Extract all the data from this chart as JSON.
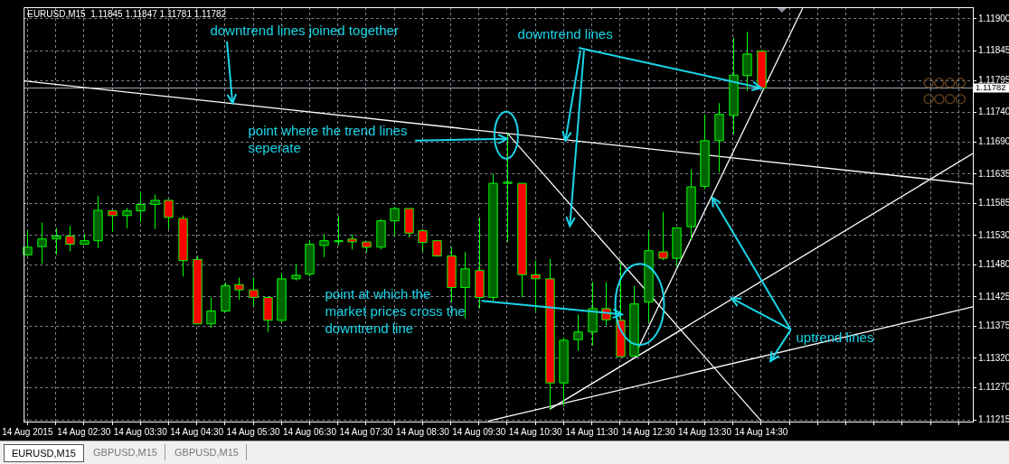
{
  "chart_data": {
    "type": "candlestick",
    "title": "EURUSD,M15  1.11845 1.11847 1.11781 1.11782",
    "x": [
      "2015-08-14T01:30",
      "2015-08-14T01:45",
      "2015-08-14T02:00",
      "2015-08-14T02:15",
      "2015-08-14T02:30",
      "2015-08-14T02:45",
      "2015-08-14T03:00",
      "2015-08-14T03:15",
      "2015-08-14T03:30",
      "2015-08-14T03:45",
      "2015-08-14T04:00",
      "2015-08-14T04:15",
      "2015-08-14T04:30",
      "2015-08-14T04:45",
      "2015-08-14T05:00",
      "2015-08-14T05:15",
      "2015-08-14T05:30",
      "2015-08-14T05:45",
      "2015-08-14T06:00",
      "2015-08-14T06:15",
      "2015-08-14T06:30",
      "2015-08-14T06:45",
      "2015-08-14T07:00",
      "2015-08-14T07:15",
      "2015-08-14T07:30",
      "2015-08-14T07:45",
      "2015-08-14T08:00",
      "2015-08-14T08:15",
      "2015-08-14T08:30",
      "2015-08-14T08:45",
      "2015-08-14T09:00",
      "2015-08-14T09:15",
      "2015-08-14T09:30",
      "2015-08-14T09:45",
      "2015-08-14T10:00",
      "2015-08-14T10:15",
      "2015-08-14T10:30",
      "2015-08-14T10:45",
      "2015-08-14T11:00",
      "2015-08-14T11:15",
      "2015-08-14T11:30",
      "2015-08-14T11:45",
      "2015-08-14T12:00",
      "2015-08-14T12:15",
      "2015-08-14T12:30",
      "2015-08-14T12:45",
      "2015-08-14T13:00",
      "2015-08-14T13:15",
      "2015-08-14T13:30",
      "2015-08-14T13:45",
      "2015-08-14T14:00",
      "2015-08-14T14:15",
      "2015-08-14T14:30"
    ],
    "ohlc": [
      [
        1.11497,
        1.11538,
        1.11495,
        1.1151
      ],
      [
        1.11511,
        1.11552,
        1.11482,
        1.11524
      ],
      [
        1.11524,
        1.11543,
        1.11497,
        1.11529
      ],
      [
        1.11529,
        1.11546,
        1.11503,
        1.11515
      ],
      [
        1.11515,
        1.11533,
        1.11515,
        1.11521
      ],
      [
        1.11521,
        1.11598,
        1.11508,
        1.11573
      ],
      [
        1.11572,
        1.11572,
        1.11536,
        1.11564
      ],
      [
        1.11564,
        1.11577,
        1.11542,
        1.11572
      ],
      [
        1.11572,
        1.11604,
        1.11553,
        1.11583
      ],
      [
        1.11583,
        1.116,
        1.11541,
        1.1159
      ],
      [
        1.1159,
        1.1159,
        1.11541,
        1.11561
      ],
      [
        1.11559,
        1.11564,
        1.1146,
        1.11487
      ],
      [
        1.11489,
        1.11496,
        1.11379,
        1.11379
      ],
      [
        1.11379,
        1.11424,
        1.11372,
        1.11401
      ],
      [
        1.11401,
        1.1145,
        1.11399,
        1.11444
      ],
      [
        1.11446,
        1.11458,
        1.1142,
        1.11437
      ],
      [
        1.11437,
        1.11458,
        1.11409,
        1.11424
      ],
      [
        1.11424,
        1.11424,
        1.11365,
        1.11385
      ],
      [
        1.11385,
        1.11466,
        1.11381,
        1.11456
      ],
      [
        1.11456,
        1.11481,
        1.11453,
        1.11462
      ],
      [
        1.11464,
        1.11522,
        1.1146,
        1.11515
      ],
      [
        1.11513,
        1.11532,
        1.11493,
        1.11521
      ],
      [
        1.11521,
        1.11564,
        1.11513,
        1.11521
      ],
      [
        1.11524,
        1.11532,
        1.11506,
        1.11519
      ],
      [
        1.11519,
        1.11519,
        1.11501,
        1.1151
      ],
      [
        1.1151,
        1.11558,
        1.11506,
        1.11555
      ],
      [
        1.11555,
        1.11579,
        1.11529,
        1.11576
      ],
      [
        1.11576,
        1.11576,
        1.11527,
        1.11534
      ],
      [
        1.11538,
        1.11541,
        1.11502,
        1.11518
      ],
      [
        1.11521,
        1.11521,
        1.11495,
        1.11495
      ],
      [
        1.11495,
        1.1151,
        1.11416,
        1.11441
      ],
      [
        1.11441,
        1.11502,
        1.11388,
        1.11473
      ],
      [
        1.1147,
        1.11561,
        1.11405,
        1.11424
      ],
      [
        1.11424,
        1.11635,
        1.11418,
        1.11619
      ],
      [
        1.11619,
        1.11705,
        1.11519,
        1.11621
      ],
      [
        1.11619,
        1.11619,
        1.11424,
        1.11463
      ],
      [
        1.11463,
        1.11487,
        1.114,
        1.11456
      ],
      [
        1.11456,
        1.1149,
        1.11233,
        1.11278
      ],
      [
        1.11278,
        1.11356,
        1.11238,
        1.11351
      ],
      [
        1.11352,
        1.11395,
        1.11333,
        1.11365
      ],
      [
        1.11365,
        1.11451,
        1.11342,
        1.11405
      ],
      [
        1.11405,
        1.1145,
        1.11376,
        1.11386
      ],
      [
        1.11385,
        1.11485,
        1.11323,
        1.11323
      ],
      [
        1.11324,
        1.11444,
        1.11324,
        1.11413
      ],
      [
        1.11416,
        1.11538,
        1.11381,
        1.11504
      ],
      [
        1.11502,
        1.1157,
        1.11488,
        1.11491
      ],
      [
        1.11491,
        1.11543,
        1.11477,
        1.11543
      ],
      [
        1.11545,
        1.11643,
        1.11523,
        1.11613
      ],
      [
        1.11614,
        1.11737,
        1.11609,
        1.11692
      ],
      [
        1.11692,
        1.11756,
        1.11638,
        1.11737
      ],
      [
        1.11735,
        1.11868,
        1.11703,
        1.11804
      ],
      [
        1.11803,
        1.11878,
        1.11777,
        1.1184
      ],
      [
        1.11845,
        1.11847,
        1.11781,
        1.11782
      ]
    ],
    "color": "#00ff00",
    "colors": [
      "#006400",
      "#006400",
      "#006400",
      "#ff0000",
      "#006400",
      "#006400",
      "#ff0000",
      "#006400",
      "#006400",
      "#006400",
      "#ff0000",
      "#ff0000",
      "#ff0000",
      "#006400",
      "#006400",
      "#ff0000",
      "#ff0000",
      "#ff0000",
      "#006400",
      "#006400",
      "#006400",
      "#006400",
      "#006400",
      "#ff0000",
      "#ff0000",
      "#006400",
      "#006400",
      "#ff0000",
      "#ff0000",
      "#ff0000",
      "#ff0000",
      "#006400",
      "#ff0000",
      "#006400",
      "#006400",
      "#ff0000",
      "#ff0000",
      "#ff0000",
      "#006400",
      "#006400",
      "#006400",
      "#ff0000",
      "#ff0000",
      "#006400",
      "#006400",
      "#ff0000",
      "#006400",
      "#006400",
      "#006400",
      "#006400",
      "#006400",
      "#006400",
      "#ff0000"
    ],
    "series": [
      {
        "type": "line",
        "color": "#ffffff",
        "x": [
          "2015-08-14T01:26",
          "2015-08-14T18:15"
        ],
        "values": [
          1.11794,
          1.11618
        ]
      },
      {
        "type": "line",
        "color": "#ffffff",
        "x": [
          "2015-08-14T10:00",
          "2015-08-14T14:30"
        ],
        "values": [
          1.11705,
          1.11213
        ]
      },
      {
        "type": "line",
        "color": "#ffffff",
        "x": [
          "2015-08-14T10:45",
          "2015-08-14T18:15"
        ],
        "values": [
          1.11233,
          1.1167
        ]
      },
      {
        "type": "line",
        "color": "#ffffff",
        "x": [
          "2015-08-14T09:40",
          "2015-08-14T18:15"
        ],
        "values": [
          1.11213,
          1.11408
        ]
      },
      {
        "type": "line",
        "color": "#ffffff",
        "x": [
          "2015-08-14T12:15",
          "2015-08-14T15:14"
        ],
        "values": [
          1.11323,
          1.11918
        ]
      }
    ],
    "xlim": [
      "2015-08-14T01:26",
      "2015-08-14T18:15"
    ],
    "xticks": [
      {
        "value": "2015-08-14T01:30",
        "label": "14 Aug 2015"
      },
      {
        "value": "2015-08-14T02:00",
        "label": null
      },
      {
        "value": "2015-08-14T02:30",
        "label": "14 Aug 02:30"
      },
      {
        "value": "2015-08-14T03:00",
        "label": null
      },
      {
        "value": "2015-08-14T03:30",
        "label": "14 Aug 03:30"
      },
      {
        "value": "2015-08-14T04:00",
        "label": null
      },
      {
        "value": "2015-08-14T04:30",
        "label": "14 Aug 04:30"
      },
      {
        "value": "2015-08-14T05:00",
        "label": null
      },
      {
        "value": "2015-08-14T05:30",
        "label": "14 Aug 05:30"
      },
      {
        "value": "2015-08-14T06:00",
        "label": null
      },
      {
        "value": "2015-08-14T06:30",
        "label": "14 Aug 06:30"
      },
      {
        "value": "2015-08-14T07:00",
        "label": null
      },
      {
        "value": "2015-08-14T07:30",
        "label": "14 Aug 07:30"
      },
      {
        "value": "2015-08-14T08:00",
        "label": null
      },
      {
        "value": "2015-08-14T08:30",
        "label": "14 Aug 08:30"
      },
      {
        "value": "2015-08-14T09:00",
        "label": null
      },
      {
        "value": "2015-08-14T09:30",
        "label": "14 Aug 09:30"
      },
      {
        "value": "2015-08-14T10:00",
        "label": null
      },
      {
        "value": "2015-08-14T10:30",
        "label": "14 Aug 10:30"
      },
      {
        "value": "2015-08-14T11:00",
        "label": null
      },
      {
        "value": "2015-08-14T11:30",
        "label": "14 Aug 11:30"
      },
      {
        "value": "2015-08-14T12:00",
        "label": null
      },
      {
        "value": "2015-08-14T12:30",
        "label": "14 Aug 12:30"
      },
      {
        "value": "2015-08-14T13:00",
        "label": null
      },
      {
        "value": "2015-08-14T13:30",
        "label": "14 Aug 13:30"
      },
      {
        "value": "2015-08-14T14:00",
        "label": null
      },
      {
        "value": "2015-08-14T14:30",
        "label": "14 Aug 14:30"
      },
      {
        "value": "2015-08-14T15:00",
        "label": null
      },
      {
        "value": "2015-08-14T15:30",
        "label": null
      },
      {
        "value": "2015-08-14T16:00",
        "label": null
      },
      {
        "value": "2015-08-14T16:30",
        "label": null
      },
      {
        "value": "2015-08-14T17:00",
        "label": null
      },
      {
        "value": "2015-08-14T17:30",
        "label": null
      },
      {
        "value": "2015-08-14T18:00",
        "label": null
      }
    ],
    "ylim": [
      1.11212,
      1.1192
    ],
    "yticks": [
      1.11215,
      {
        "value": 1.1127,
        "label": "1.11270"
      },
      {
        "value": 1.1132,
        "label": "1.11320"
      },
      1.11375,
      1.11425,
      {
        "value": 1.1148,
        "label": "1.11480"
      },
      {
        "value": 1.1153,
        "label": "1.11530"
      },
      1.11585,
      1.11635,
      {
        "value": 1.1169,
        "label": "1.11690"
      },
      {
        "value": 1.1174,
        "label": "1.11740"
      },
      1.11795,
      1.11845,
      {
        "value": 1.119,
        "label": "1.11900"
      }
    ],
    "grid": true,
    "ref_lines": [
      {
        "axis": "y",
        "value": 1.11782,
        "label": "1.11782",
        "color": "#a0a8b4"
      }
    ],
    "annotations": [
      {
        "text": "downtrend lines joined together",
        "x": "2015-08-14T05:08",
        "y": 1.11756
      },
      {
        "text": "downtrend lines",
        "x": "2015-08-14T14:30",
        "y": 1.11782
      },
      {
        "text": "point where the trend lines seperate",
        "x": "2015-08-14T10:00",
        "y": 1.11695
      },
      {
        "text": "point at which the market prices cross the downtrend line",
        "x": "2015-08-14T12:02",
        "y": 1.11395
      },
      {
        "text": "uptrend lines",
        "x": "2015-08-14T13:38",
        "y": 1.11595
      },
      "EURUSD,M15",
      "GBPUSD,M15",
      "GBPUSD,M15"
    ]
  }
}
